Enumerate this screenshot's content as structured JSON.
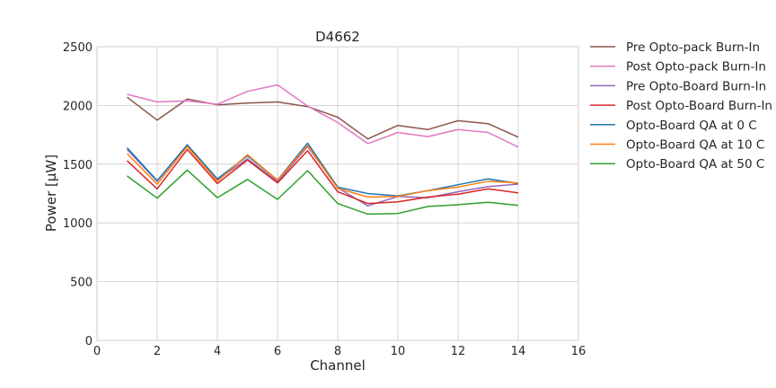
{
  "chart_data": {
    "type": "line",
    "title": "D4662",
    "xlabel": "Channel",
    "ylabel": "Power [µW]",
    "xlim": [
      0,
      16
    ],
    "ylim": [
      0,
      2500
    ],
    "xticks": [
      0,
      2,
      4,
      6,
      8,
      10,
      12,
      14,
      16
    ],
    "yticks": [
      0,
      500,
      1000,
      1500,
      2000,
      2500
    ],
    "grid": true,
    "legend_position": "outside-right",
    "x": [
      1,
      2,
      3,
      4,
      5,
      6,
      7,
      8,
      9,
      10,
      11,
      12,
      13,
      14
    ],
    "series": [
      {
        "name": "Pre Opto-pack Burn-In",
        "color": "#8c564b",
        "values": [
          2070,
          1875,
          2055,
          2005,
          2020,
          2030,
          1990,
          1900,
          1715,
          1830,
          1795,
          1870,
          1845,
          1730
        ]
      },
      {
        "name": "Post Opto-pack Burn-In",
        "color": "#e377c2",
        "values": [
          2095,
          2030,
          2040,
          2010,
          2120,
          2175,
          1995,
          1855,
          1675,
          1770,
          1735,
          1795,
          1770,
          1645
        ]
      },
      {
        "name": "Pre Opto-Board Burn-In",
        "color": "#9467bd",
        "values": [
          1625,
          1355,
          1665,
          1365,
          1545,
          1350,
          1650,
          1300,
          1145,
          1225,
          1215,
          1265,
          1310,
          1330
        ]
      },
      {
        "name": "Post Opto-Board Burn-In",
        "color": "#d62728",
        "values": [
          1530,
          1290,
          1625,
          1335,
          1535,
          1340,
          1615,
          1265,
          1165,
          1180,
          1220,
          1245,
          1290,
          1255
        ]
      },
      {
        "name": "Opto-Board QA at 0 C",
        "color": "#1f77b4",
        "values": [
          1640,
          1360,
          1665,
          1375,
          1570,
          1365,
          1680,
          1305,
          1250,
          1230,
          1275,
          1325,
          1375,
          1335
        ]
      },
      {
        "name": "Opto-Board QA at 10 C",
        "color": "#ff7f0e",
        "values": [
          1590,
          1330,
          1650,
          1355,
          1580,
          1365,
          1660,
          1295,
          1220,
          1225,
          1275,
          1305,
          1355,
          1340
        ]
      },
      {
        "name": "Opto-Board QA at 50 C",
        "color": "#2ca02c",
        "values": [
          1400,
          1210,
          1450,
          1215,
          1370,
          1200,
          1445,
          1165,
          1075,
          1080,
          1140,
          1155,
          1175,
          1150
        ]
      }
    ]
  }
}
